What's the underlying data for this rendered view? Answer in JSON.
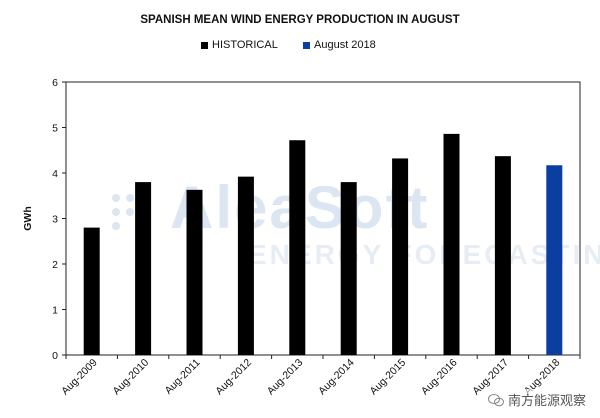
{
  "chart_data": {
    "type": "bar",
    "title": "SPANISH MEAN WIND ENERGY PRODUCTION IN AUGUST",
    "ylabel": "GWh",
    "xlabel": "",
    "ylim": [
      0,
      6
    ],
    "yticks": [
      0,
      1,
      2,
      3,
      4,
      5,
      6
    ],
    "grid": false,
    "legend_position": "top",
    "categories": [
      "Aug-2009",
      "Aug-2010",
      "Aug-2011",
      "Aug-2012",
      "Aug-2013",
      "Aug-2014",
      "Aug-2015",
      "Aug-2016",
      "Aug-2017",
      "Aug-2018"
    ],
    "series": [
      {
        "name": "HISTORICAL",
        "color": "#000000",
        "values": [
          2.8,
          3.8,
          3.63,
          3.92,
          4.72,
          3.8,
          4.32,
          4.86,
          4.37,
          null
        ]
      },
      {
        "name": "August 2018",
        "color": "#0a3ea0",
        "values": [
          null,
          null,
          null,
          null,
          null,
          null,
          null,
          null,
          null,
          4.17
        ]
      }
    ]
  },
  "watermark": {
    "brand": "AleaSoft",
    "tagline": "ENERGY FORECASTING"
  },
  "footer": {
    "text": "南方能源观察",
    "icon": "wechat-icon"
  }
}
